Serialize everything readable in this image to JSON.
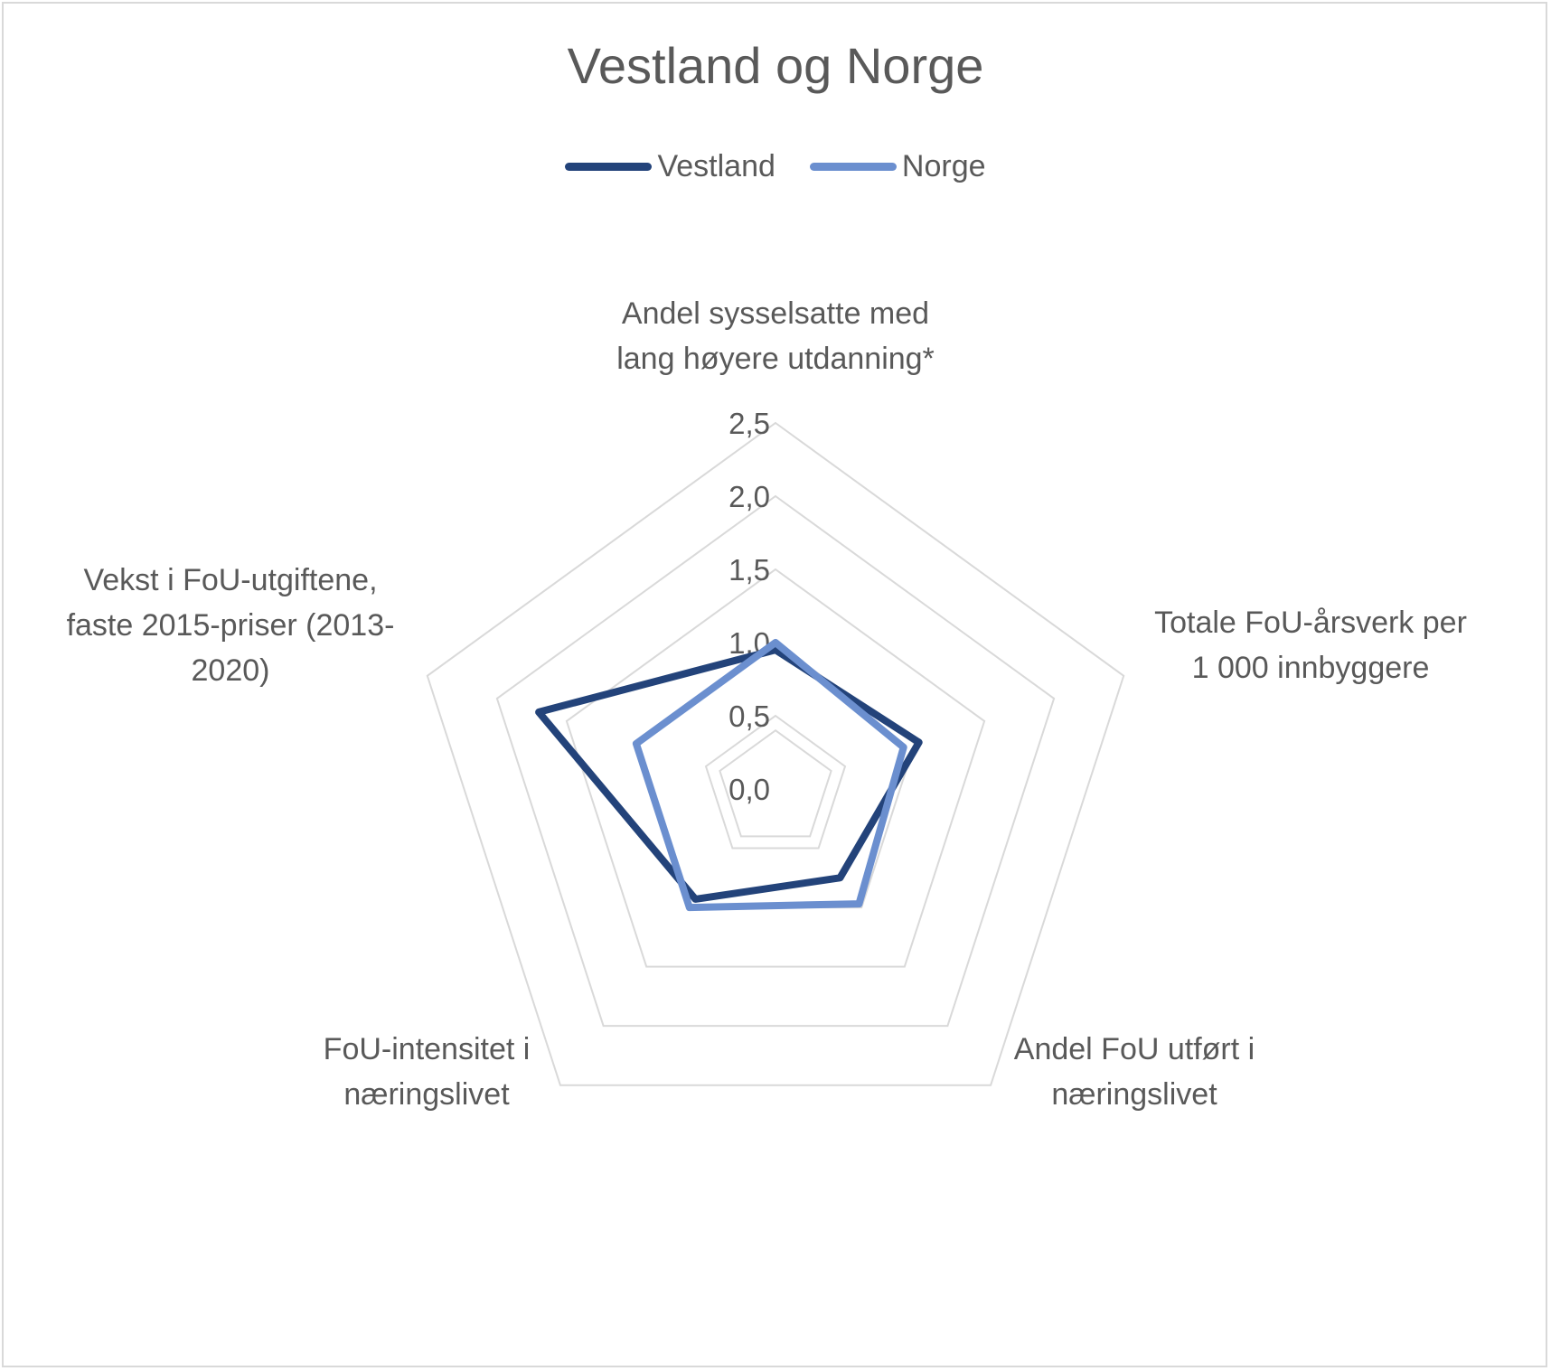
{
  "chart_data": {
    "type": "radar",
    "title": "Vestland og Norge",
    "axes": [
      [
        "Andel sysselsatte med",
        "lang høyere utdanning*"
      ],
      [
        "Totale FoU-årsverk per",
        "1 000 innbyggere"
      ],
      [
        "Andel FoU utført i",
        "næringslivet"
      ],
      [
        "FoU-intensitet i",
        "næringslivet"
      ],
      [
        "Vekst i FoU-utgiftene,",
        "faste 2015-priser (2013-",
        "2020)"
      ]
    ],
    "ticks": [
      "0,0",
      "0,5",
      "1,0",
      "1,5",
      "2,0",
      "2,5"
    ],
    "tick_values": [
      0,
      0.5,
      1.0,
      1.5,
      2.0,
      2.5
    ],
    "rmin": 0,
    "rmax": 2.5,
    "legend_position": "top",
    "series": [
      {
        "name": "Vestland",
        "color": "#23437a",
        "values": [
          0.95,
          1.03,
          0.75,
          0.93,
          1.7
        ]
      },
      {
        "name": "Norge",
        "color": "#6b8fcf",
        "values": [
          1.0,
          0.92,
          0.97,
          1.0,
          1.0
        ]
      }
    ]
  }
}
